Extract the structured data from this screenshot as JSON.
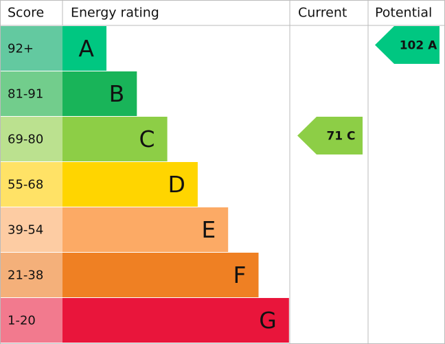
{
  "header": {
    "score": "Score",
    "rating": "Energy rating",
    "current": "Current",
    "potential": "Potential"
  },
  "bands": [
    {
      "score": "92+",
      "letter": "A",
      "color": "#00c781",
      "score_color": "#63c9a0"
    },
    {
      "score": "81-91",
      "letter": "B",
      "color": "#19b459",
      "score_color": "#72cd8c"
    },
    {
      "score": "69-80",
      "letter": "C",
      "color": "#8dce46",
      "score_color": "#bbe18f"
    },
    {
      "score": "55-68",
      "letter": "D",
      "color": "#ffd500",
      "score_color": "#ffe266"
    },
    {
      "score": "39-54",
      "letter": "E",
      "color": "#fcaa65",
      "score_color": "#fdcca3"
    },
    {
      "score": "21-38",
      "letter": "F",
      "color": "#ef8023",
      "score_color": "#f4b07a"
    },
    {
      "score": "1-20",
      "letter": "G",
      "color": "#e9153b",
      "score_color": "#f27a8e"
    }
  ],
  "current": {
    "score": 71,
    "rating": "C"
  },
  "potential": {
    "score": 102,
    "rating": "A"
  }
}
